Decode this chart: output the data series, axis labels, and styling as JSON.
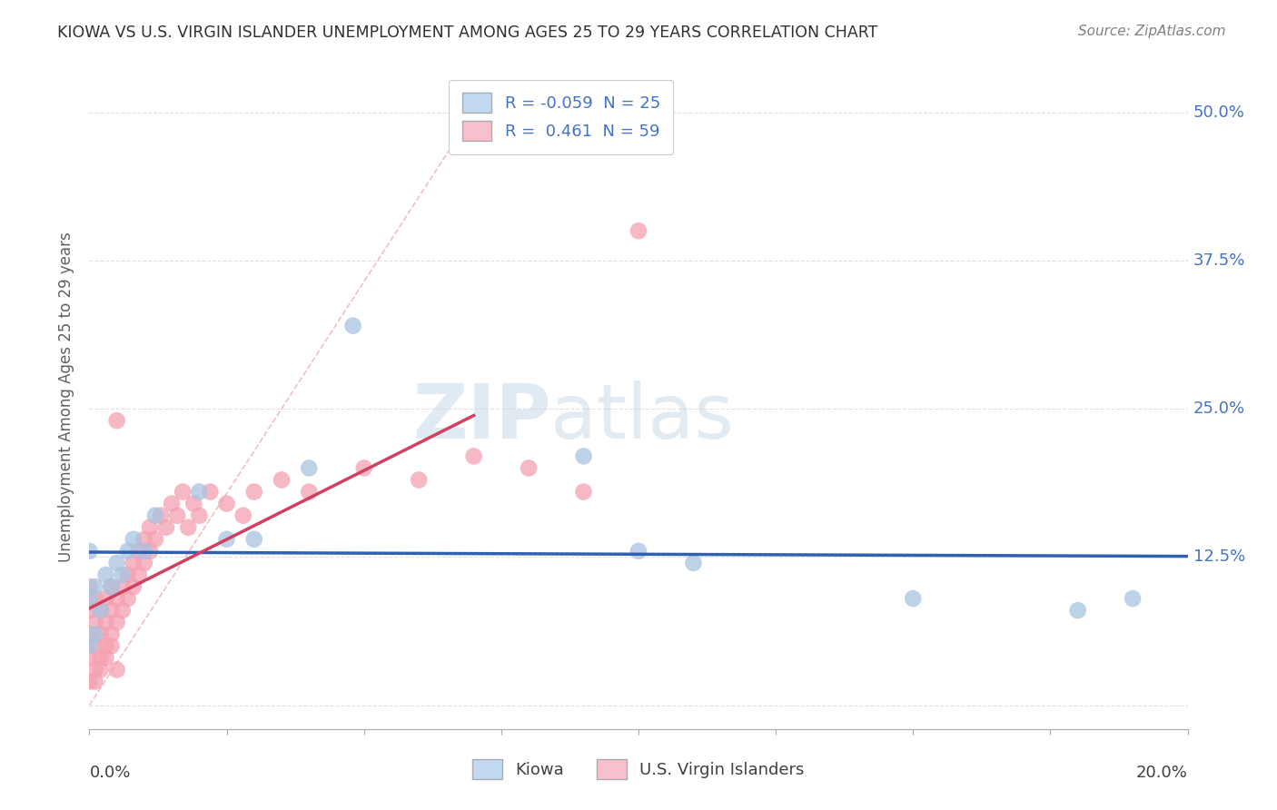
{
  "title": "KIOWA VS U.S. VIRGIN ISLANDER UNEMPLOYMENT AMONG AGES 25 TO 29 YEARS CORRELATION CHART",
  "source": "Source: ZipAtlas.com",
  "ylabel": "Unemployment Among Ages 25 to 29 years",
  "xlim": [
    0.0,
    0.2
  ],
  "ylim": [
    -0.02,
    0.54
  ],
  "yticks": [
    0.0,
    0.125,
    0.25,
    0.375,
    0.5
  ],
  "ytick_labels": [
    "",
    "12.5%",
    "25.0%",
    "37.5%",
    "50.0%"
  ],
  "kiowa_R": -0.059,
  "kiowa_N": 25,
  "virgin_R": 0.461,
  "virgin_N": 59,
  "kiowa_color": "#a8c4e0",
  "virgin_color": "#f4a0b0",
  "kiowa_line_color": "#3060b0",
  "virgin_line_color": "#d04060",
  "legend_box_color_kiowa": "#c0d8f0",
  "legend_box_color_virgin": "#f8c0cc",
  "background_color": "#ffffff",
  "diag_line_color": "#d0d0d0",
  "grid_color": "#e0e0e0",
  "watermark_color": "#dce8f4",
  "kiowa_x": [
    0.0,
    0.0,
    0.0,
    0.001,
    0.001,
    0.002,
    0.003,
    0.004,
    0.005,
    0.006,
    0.007,
    0.008,
    0.01,
    0.012,
    0.02,
    0.025,
    0.03,
    0.04,
    0.048,
    0.09,
    0.1,
    0.11,
    0.15,
    0.18,
    0.19
  ],
  "kiowa_y": [
    0.05,
    0.09,
    0.13,
    0.06,
    0.1,
    0.08,
    0.11,
    0.1,
    0.12,
    0.11,
    0.13,
    0.14,
    0.13,
    0.16,
    0.18,
    0.14,
    0.14,
    0.2,
    0.32,
    0.21,
    0.13,
    0.12,
    0.09,
    0.08,
    0.09
  ],
  "virgin_x": [
    0.0,
    0.0,
    0.0,
    0.0,
    0.0,
    0.001,
    0.001,
    0.001,
    0.001,
    0.002,
    0.002,
    0.002,
    0.003,
    0.003,
    0.003,
    0.004,
    0.004,
    0.004,
    0.005,
    0.005,
    0.005,
    0.006,
    0.006,
    0.007,
    0.007,
    0.008,
    0.008,
    0.009,
    0.009,
    0.01,
    0.01,
    0.011,
    0.011,
    0.012,
    0.013,
    0.014,
    0.015,
    0.016,
    0.017,
    0.018,
    0.019,
    0.02,
    0.022,
    0.025,
    0.028,
    0.03,
    0.035,
    0.04,
    0.05,
    0.06,
    0.07,
    0.08,
    0.09,
    0.1,
    0.001,
    0.002,
    0.003,
    0.004,
    0.005
  ],
  "virgin_y": [
    0.02,
    0.04,
    0.06,
    0.08,
    0.1,
    0.03,
    0.05,
    0.07,
    0.09,
    0.04,
    0.06,
    0.08,
    0.05,
    0.07,
    0.09,
    0.06,
    0.08,
    0.1,
    0.07,
    0.09,
    0.24,
    0.08,
    0.1,
    0.09,
    0.11,
    0.1,
    0.12,
    0.11,
    0.13,
    0.12,
    0.14,
    0.13,
    0.15,
    0.14,
    0.16,
    0.15,
    0.17,
    0.16,
    0.18,
    0.15,
    0.17,
    0.16,
    0.18,
    0.17,
    0.16,
    0.18,
    0.19,
    0.18,
    0.2,
    0.19,
    0.21,
    0.2,
    0.18,
    0.4,
    0.02,
    0.03,
    0.04,
    0.05,
    0.03
  ]
}
